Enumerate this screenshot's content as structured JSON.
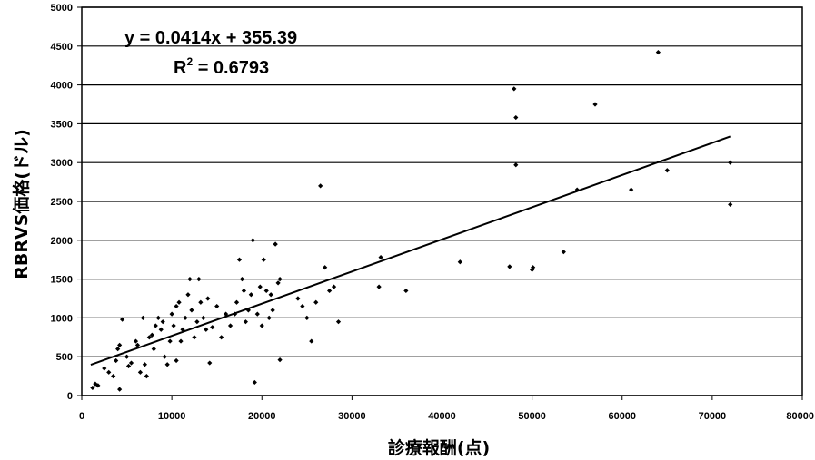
{
  "chart_data": {
    "type": "scatter",
    "title": "",
    "xlabel": "診療報酬(点)",
    "ylabel": "RBRVS価格(ドル)",
    "xlim": [
      0,
      80000
    ],
    "ylim": [
      0,
      5000
    ],
    "x_ticks": [
      "0",
      "10000",
      "20000",
      "30000",
      "40000",
      "50000",
      "60000",
      "70000",
      "80000"
    ],
    "y_ticks": [
      "0",
      "500",
      "1000",
      "1500",
      "2000",
      "2500",
      "3000",
      "3500",
      "4000",
      "4500",
      "5000"
    ],
    "grid": "horizontal",
    "equation": "y = 0.0414x + 355.39",
    "r2_label": "R",
    "r2_sup": "2",
    "r2_value": " = 0.6793",
    "trendline": {
      "slope": 0.0414,
      "intercept": 355.39,
      "x_from": 1000,
      "x_to": 72000
    },
    "colors": {
      "points": "#000000",
      "grid": "#000000",
      "trend": "#000000"
    },
    "points": [
      [
        1200,
        100
      ],
      [
        1500,
        150
      ],
      [
        1800,
        130
      ],
      [
        2500,
        350
      ],
      [
        3000,
        300
      ],
      [
        3500,
        250
      ],
      [
        3800,
        450
      ],
      [
        4000,
        600
      ],
      [
        4200,
        650
      ],
      [
        4500,
        980
      ],
      [
        4200,
        80
      ],
      [
        5000,
        500
      ],
      [
        5200,
        380
      ],
      [
        5500,
        420
      ],
      [
        6000,
        700
      ],
      [
        6200,
        650
      ],
      [
        6500,
        300
      ],
      [
        6800,
        1000
      ],
      [
        7000,
        400
      ],
      [
        7200,
        250
      ],
      [
        7500,
        750
      ],
      [
        7800,
        780
      ],
      [
        8000,
        600
      ],
      [
        8200,
        900
      ],
      [
        8500,
        1000
      ],
      [
        8800,
        850
      ],
      [
        9000,
        950
      ],
      [
        9200,
        500
      ],
      [
        9500,
        400
      ],
      [
        9800,
        700
      ],
      [
        10000,
        1050
      ],
      [
        10200,
        900
      ],
      [
        10500,
        1150
      ],
      [
        10500,
        450
      ],
      [
        10800,
        1200
      ],
      [
        11000,
        700
      ],
      [
        11200,
        850
      ],
      [
        11500,
        1000
      ],
      [
        11800,
        1300
      ],
      [
        12000,
        1500
      ],
      [
        12200,
        1100
      ],
      [
        12500,
        750
      ],
      [
        12800,
        950
      ],
      [
        13000,
        1500
      ],
      [
        13200,
        1200
      ],
      [
        13500,
        1000
      ],
      [
        13800,
        850
      ],
      [
        14000,
        1250
      ],
      [
        14200,
        420
      ],
      [
        14500,
        880
      ],
      [
        15000,
        1150
      ],
      [
        15500,
        750
      ],
      [
        16000,
        1050
      ],
      [
        16500,
        900
      ],
      [
        17000,
        1050
      ],
      [
        17200,
        1200
      ],
      [
        17500,
        1750
      ],
      [
        17800,
        1500
      ],
      [
        18000,
        1350
      ],
      [
        18200,
        950
      ],
      [
        18500,
        1100
      ],
      [
        18800,
        1300
      ],
      [
        19000,
        2000
      ],
      [
        19200,
        170
      ],
      [
        19500,
        1050
      ],
      [
        19800,
        1400
      ],
      [
        20000,
        900
      ],
      [
        20200,
        1750
      ],
      [
        20500,
        1350
      ],
      [
        20800,
        1000
      ],
      [
        21000,
        1300
      ],
      [
        21200,
        1100
      ],
      [
        21500,
        1950
      ],
      [
        21800,
        1450
      ],
      [
        21500,
        1950
      ],
      [
        22000,
        1500
      ],
      [
        24000,
        1250
      ],
      [
        24500,
        1150
      ],
      [
        25000,
        1000
      ],
      [
        25500,
        700
      ],
      [
        26000,
        1200
      ],
      [
        26500,
        2700
      ],
      [
        27000,
        1650
      ],
      [
        27500,
        1350
      ],
      [
        28000,
        1400
      ],
      [
        28500,
        950
      ],
      [
        33000,
        1400
      ],
      [
        33200,
        1780
      ],
      [
        36000,
        1350
      ],
      [
        42000,
        1720
      ],
      [
        47500,
        1660
      ],
      [
        48000,
        3950
      ],
      [
        48200,
        3580
      ],
      [
        48200,
        2970
      ],
      [
        50000,
        1620
      ],
      [
        50100,
        1650
      ],
      [
        53500,
        1850
      ],
      [
        55000,
        2650
      ],
      [
        57000,
        3750
      ],
      [
        61000,
        2650
      ],
      [
        64000,
        4420
      ],
      [
        65000,
        2900
      ],
      [
        72000,
        3000
      ],
      [
        72000,
        2460
      ],
      [
        22000,
        460
      ]
    ]
  }
}
